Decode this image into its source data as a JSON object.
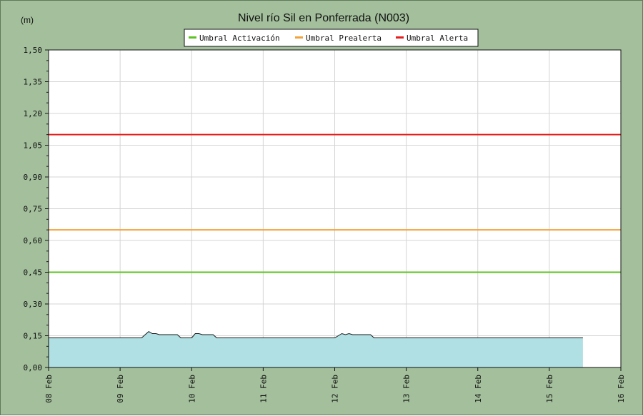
{
  "chart_data": {
    "type": "area",
    "title": "Nivel río Sil en Ponferrada  (N003)",
    "ylabel": "(m)",
    "xlabel": "",
    "ylim": [
      0,
      1.5
    ],
    "xlim": [
      0,
      8
    ],
    "grid": true,
    "legend_position": "top-center",
    "colors": {
      "background": "#a3bf9b",
      "plot_background": "#ffffff",
      "grid": "#d4d4d4",
      "area_fill": "#b0e0e3",
      "area_line": "#1a1a1a"
    },
    "y_ticks": [
      "0,00",
      "0,15",
      "0,30",
      "0,45",
      "0,60",
      "0,75",
      "0,90",
      "1,05",
      "1,20",
      "1,35",
      "1,50"
    ],
    "x_ticks": [
      "08 Feb",
      "09 Feb",
      "10 Feb",
      "11 Feb",
      "12 Feb",
      "13 Feb",
      "14 Feb",
      "15 Feb",
      "16 Feb"
    ],
    "thresholds": [
      {
        "name": "Umbral Activación",
        "value": 0.45,
        "color": "#5cc221"
      },
      {
        "name": "Umbral Prealerta",
        "value": 0.65,
        "color": "#f2a23a"
      },
      {
        "name": "Umbral Alerta",
        "value": 1.1,
        "color": "#e81e1e"
      }
    ],
    "series": [
      {
        "name": "",
        "x": [
          0,
          1.3,
          1.35,
          1.4,
          1.45,
          1.5,
          1.55,
          1.6,
          1.8,
          1.85,
          2.0,
          2.05,
          2.1,
          2.15,
          2.3,
          2.35,
          3.0,
          4.0,
          4.05,
          4.1,
          4.15,
          4.2,
          4.25,
          4.3,
          4.5,
          4.55,
          5.0,
          6.0,
          7.0,
          7.47
        ],
        "y": [
          0.14,
          0.14,
          0.155,
          0.17,
          0.16,
          0.16,
          0.155,
          0.155,
          0.155,
          0.14,
          0.14,
          0.16,
          0.16,
          0.155,
          0.155,
          0.14,
          0.14,
          0.14,
          0.15,
          0.16,
          0.155,
          0.16,
          0.155,
          0.155,
          0.155,
          0.14,
          0.14,
          0.14,
          0.14,
          0.14
        ]
      }
    ]
  }
}
